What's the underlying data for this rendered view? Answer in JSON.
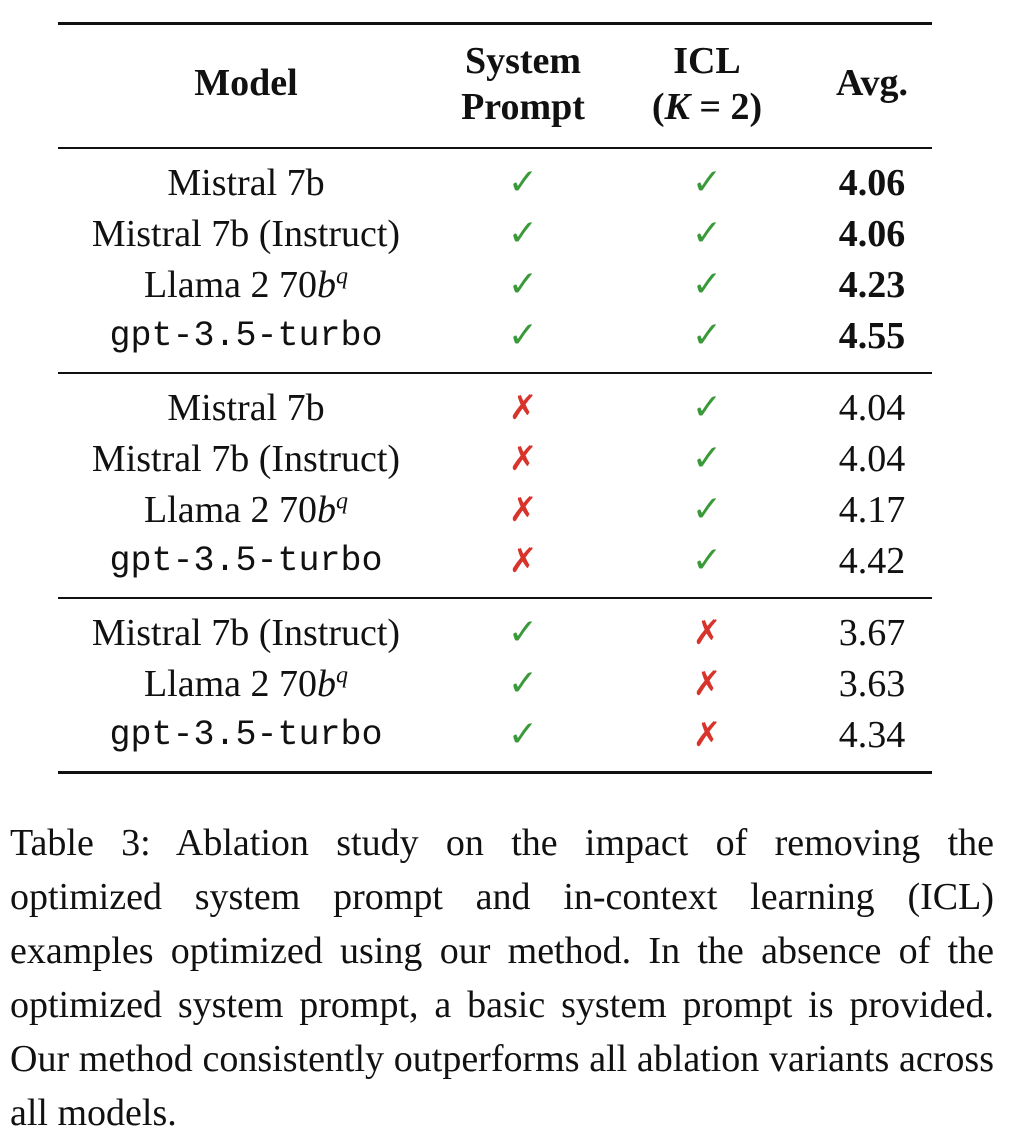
{
  "table": {
    "headers": {
      "model": "Model",
      "system_line1": "System",
      "system_line2": "Prompt",
      "icl_line1": "ICL",
      "icl_line2_pre": "(",
      "icl_line2_k": "K",
      "icl_line2_post": " = 2)",
      "avg": "Avg."
    },
    "groups": [
      [
        {
          "model": "Mistral 7b",
          "mono": false,
          "sup": "",
          "system": "✓",
          "icl": "✓",
          "avg": "4.06",
          "bold": true
        },
        {
          "model": "Mistral 7b (Instruct)",
          "mono": false,
          "sup": "",
          "system": "✓",
          "icl": "✓",
          "avg": "4.06",
          "bold": true
        },
        {
          "model": "Llama 2 70",
          "model_ital": "b",
          "mono": false,
          "sup": "q",
          "system": "✓",
          "icl": "✓",
          "avg": "4.23",
          "bold": true
        },
        {
          "model": "gpt-3.5-turbo",
          "mono": true,
          "sup": "",
          "system": "✓",
          "icl": "✓",
          "avg": "4.55",
          "bold": true
        }
      ],
      [
        {
          "model": "Mistral 7b",
          "mono": false,
          "sup": "",
          "system": "✗",
          "icl": "✓",
          "avg": "4.04",
          "bold": false
        },
        {
          "model": "Mistral 7b (Instruct)",
          "mono": false,
          "sup": "",
          "system": "✗",
          "icl": "✓",
          "avg": "4.04",
          "bold": false
        },
        {
          "model": "Llama 2 70",
          "model_ital": "b",
          "mono": false,
          "sup": "q",
          "system": "✗",
          "icl": "✓",
          "avg": "4.17",
          "bold": false
        },
        {
          "model": "gpt-3.5-turbo",
          "mono": true,
          "sup": "",
          "system": "✗",
          "icl": "✓",
          "avg": "4.42",
          "bold": false
        }
      ],
      [
        {
          "model": "Mistral 7b (Instruct)",
          "mono": false,
          "sup": "",
          "system": "✓",
          "icl": "✗",
          "avg": "3.67",
          "bold": false
        },
        {
          "model": "Llama 2 70",
          "model_ital": "b",
          "mono": false,
          "sup": "q",
          "system": "✓",
          "icl": "✗",
          "avg": "3.63",
          "bold": false
        },
        {
          "model": "gpt-3.5-turbo",
          "mono": true,
          "sup": "",
          "system": "✓",
          "icl": "✗",
          "avg": "4.34",
          "bold": false
        }
      ]
    ],
    "colors": {
      "check": "#3a9a3a",
      "cross": "#d8342c"
    }
  },
  "caption": "Table 3: Ablation study on the impact of removing the optimized system prompt and in-context learning (ICL) examples optimized using our method. In the absence of the optimized system prompt, a basic system prompt is provided. Our method consistently outperforms all ablation variants across all models."
}
